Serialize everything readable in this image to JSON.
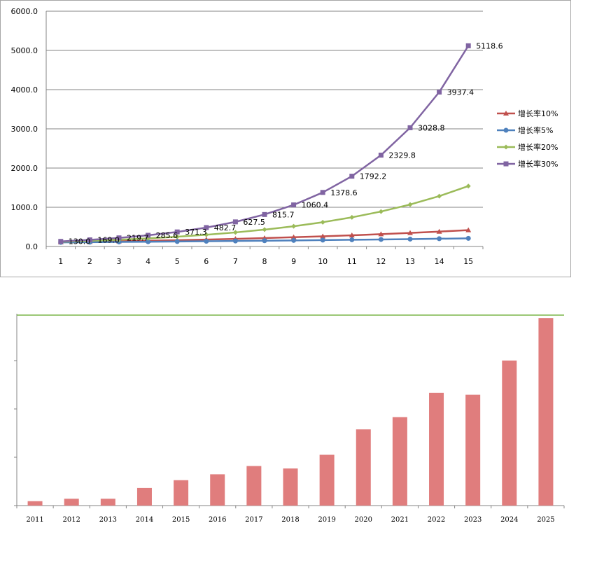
{
  "chart_data": [
    {
      "type": "line",
      "title": "",
      "xlabel": "",
      "ylabel": "",
      "categories": [
        "1",
        "2",
        "3",
        "4",
        "5",
        "6",
        "7",
        "8",
        "9",
        "10",
        "11",
        "12",
        "13",
        "14",
        "15"
      ],
      "ylim": [
        0,
        6000
      ],
      "yticks": [
        "0.0",
        "1000.0",
        "2000.0",
        "3000.0",
        "4000.0",
        "5000.0",
        "6000.0"
      ],
      "grid": true,
      "legend_position": "right",
      "series": [
        {
          "name": "增长率10%",
          "color": "#c0504d",
          "marker": "triangle",
          "values": [
            110,
            121,
            133.1,
            146.4,
            161.1,
            177.2,
            194.9,
            214.4,
            235.8,
            259.4,
            285.3,
            313.8,
            345.2,
            379.7,
            417.7
          ]
        },
        {
          "name": "增长率5%",
          "color": "#4f81bd",
          "marker": "circle",
          "values": [
            105,
            110.3,
            115.8,
            121.6,
            127.6,
            134,
            140.7,
            147.7,
            155.1,
            162.9,
            171,
            179.6,
            188.6,
            198,
            207.9
          ]
        },
        {
          "name": "增长率20%",
          "color": "#9bbb59",
          "marker": "diamond",
          "values": [
            120,
            144,
            172.8,
            207.4,
            248.8,
            298.6,
            358.3,
            430,
            516,
            619.2,
            743,
            891.6,
            1069.9,
            1283.9,
            1540.7
          ]
        },
        {
          "name": "增长率30%",
          "color": "#8064a2",
          "marker": "square",
          "values": [
            130,
            169,
            219.7,
            285.6,
            371.3,
            482.7,
            627.5,
            815.7,
            1060.4,
            1378.6,
            1792.2,
            2329.8,
            3028.8,
            3937.4,
            5118.6
          ],
          "labels": [
            "130.0",
            "169.0",
            "219.7",
            "285.6",
            "371.3",
            "482.7",
            "627.5",
            "815.7",
            "1060.4",
            "1378.6",
            "1792.2",
            "2329.8",
            "3028.8",
            "3937.4",
            "5118.6"
          ]
        }
      ]
    },
    {
      "type": "bar",
      "title": "",
      "xlabel": "",
      "ylabel": "",
      "categories": [
        "2011",
        "2012",
        "2013",
        "2014",
        "2015",
        "2016",
        "2017",
        "2018",
        "2019",
        "2020",
        "2021",
        "2022",
        "2023",
        "2024",
        "2025"
      ],
      "values": [
        0.9,
        1.4,
        1.4,
        3.6,
        5.2,
        6.4,
        8.1,
        7.6,
        10.4,
        15.6,
        18.1,
        23.1,
        22.7,
        29.7,
        38.4
      ],
      "ylim": [
        0,
        40
      ],
      "reference_line": 39,
      "bar_color": "#e07d7d",
      "reference_line_color": "#7ab648",
      "grid": false
    }
  ]
}
